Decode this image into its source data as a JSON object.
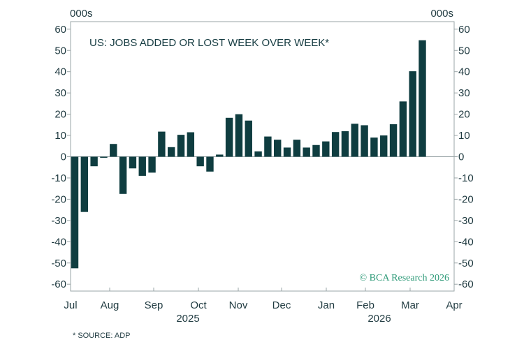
{
  "chart_data": {
    "type": "bar",
    "title": "US: JOBS ADDED OR LOST WEEK OVER WEEK*",
    "unit_left": "000s",
    "unit_right": "000s",
    "ylim": [
      -63,
      63
    ],
    "yticks": [
      60,
      50,
      40,
      30,
      20,
      10,
      0,
      -10,
      -20,
      -30,
      -40,
      -50,
      -60
    ],
    "x_month_labels": [
      "Jul",
      "Aug",
      "Sep",
      "Oct",
      "Nov",
      "Dec",
      "Jan",
      "Feb",
      "Mar",
      "Apr"
    ],
    "x_year_labels": [
      "2025",
      "2026"
    ],
    "source": "* SOURCE: ADP",
    "watermark": "© BCA Research 2026",
    "bar_color": "#0f3d40",
    "values": [
      -52.5,
      -26,
      -4.5,
      -0.5,
      6,
      -17.5,
      -5.5,
      -9,
      -7.5,
      11.8,
      4.5,
      10.3,
      11.5,
      -4.5,
      -7,
      1,
      18.3,
      20,
      17,
      2.5,
      9.5,
      8,
      4.3,
      8,
      4.3,
      5.5,
      7.2,
      11.6,
      12,
      15.5,
      14.8,
      9,
      10,
      15.3,
      26,
      40.2,
      54.8
    ],
    "grid": false,
    "legend": "none"
  }
}
